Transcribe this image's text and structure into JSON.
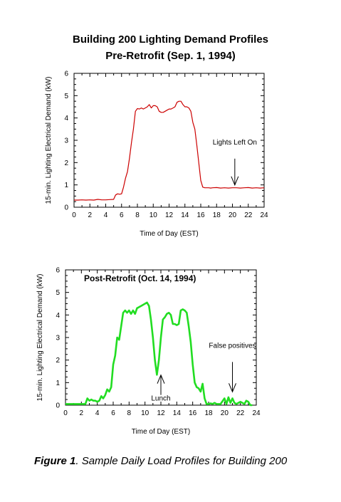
{
  "header": {
    "title": "Building 200 Lighting Demand Profiles",
    "subtitle": "Pre-Retrofit (Sep. 1, 1994)"
  },
  "caption": {
    "label": "Figure 1",
    "text": ".  Sample Daily Load Profiles for Building 200"
  },
  "chart_data": [
    {
      "type": "line",
      "title": "Pre-Retrofit (Sep. 1, 1994)",
      "xlabel": "Time of Day (EST)",
      "ylabel": "15-min. Lighting Electrical Demand (kW)",
      "xlim": [
        0,
        24
      ],
      "ylim": [
        0,
        6
      ],
      "xticks": [
        "0",
        "2",
        "4",
        "6",
        "8",
        "10",
        "12",
        "14",
        "16",
        "18",
        "20",
        "22",
        "24"
      ],
      "yticks": [
        "0",
        "1",
        "2",
        "3",
        "4",
        "5",
        "6"
      ],
      "grid": false,
      "line_color": "#cc0000",
      "annotations": [
        {
          "text": "Lights Left On",
          "x": 20.3,
          "y": 0.9
        }
      ],
      "series": [
        {
          "x": [
            0,
            0.5,
            1,
            1.5,
            2,
            2.5,
            3,
            3.5,
            4,
            4.5,
            5,
            5.25,
            5.5,
            5.75,
            6,
            6.25,
            6.5,
            6.75,
            7,
            7.25,
            7.5,
            7.75,
            8,
            8.25,
            8.5,
            8.75,
            9,
            9.25,
            9.5,
            9.75,
            10,
            10.25,
            10.5,
            10.75,
            11,
            11.25,
            11.5,
            11.75,
            12,
            12.25,
            12.5,
            12.75,
            13,
            13.25,
            13.5,
            13.75,
            14,
            14.25,
            14.5,
            14.75,
            15,
            15.25,
            15.5,
            15.75,
            16,
            16.25,
            16.5,
            16.75,
            17,
            17.25,
            17.5,
            18,
            18.5,
            19,
            19.5,
            20,
            20.5,
            21,
            21.5,
            22,
            22.5,
            23,
            23.5,
            24
          ],
          "y": [
            0.32,
            0.32,
            0.33,
            0.32,
            0.33,
            0.32,
            0.35,
            0.33,
            0.33,
            0.34,
            0.35,
            0.55,
            0.6,
            0.58,
            0.6,
            0.9,
            1.3,
            1.6,
            2.2,
            2.9,
            3.5,
            4.3,
            4.42,
            4.4,
            4.45,
            4.4,
            4.45,
            4.5,
            4.6,
            4.45,
            4.55,
            4.55,
            4.5,
            4.3,
            4.25,
            4.25,
            4.3,
            4.35,
            4.4,
            4.4,
            4.45,
            4.5,
            4.7,
            4.75,
            4.75,
            4.6,
            4.5,
            4.5,
            4.45,
            4.3,
            3.8,
            3.5,
            2.8,
            2.0,
            1.2,
            0.9,
            0.87,
            0.87,
            0.87,
            0.86,
            0.87,
            0.88,
            0.86,
            0.87,
            0.86,
            0.87,
            0.87,
            0.86,
            0.87,
            0.88,
            0.86,
            0.87,
            0.86,
            0.87
          ]
        }
      ]
    },
    {
      "type": "line",
      "title": "Post-Retrofit (Oct. 14, 1994)",
      "xlabel": "Time of Day (EST)",
      "ylabel": "15-min. Lighting Electrical Demand (kW)",
      "xlim": [
        0,
        24
      ],
      "ylim": [
        0,
        6
      ],
      "xticks": [
        "0",
        "2",
        "4",
        "6",
        "8",
        "10",
        "12",
        "14",
        "16",
        "18",
        "20",
        "22",
        "24"
      ],
      "yticks": [
        "0",
        "1",
        "2",
        "3",
        "4",
        "5",
        "6"
      ],
      "grid": false,
      "line_color": "#22dd22",
      "annotations": [
        {
          "text": "Lunch",
          "x": 12.0,
          "y": 1.4
        },
        {
          "text": "False positives",
          "x": 21.0,
          "y": 0.4
        }
      ],
      "series": [
        {
          "x": [
            0,
            0.5,
            1,
            1.5,
            2,
            2.5,
            2.75,
            3,
            3.25,
            3.5,
            3.75,
            4,
            4.25,
            4.5,
            4.75,
            5,
            5.25,
            5.5,
            5.75,
            6,
            6.25,
            6.5,
            6.75,
            7,
            7.25,
            7.5,
            7.75,
            8,
            8.25,
            8.5,
            8.75,
            9,
            9.25,
            9.5,
            9.75,
            10,
            10.25,
            10.5,
            10.75,
            11,
            11.25,
            11.5,
            11.75,
            12,
            12.25,
            12.5,
            12.75,
            13,
            13.25,
            13.5,
            13.75,
            14,
            14.25,
            14.5,
            14.75,
            15,
            15.25,
            15.5,
            15.75,
            16,
            16.25,
            16.5,
            16.75,
            17,
            17.25,
            17.5,
            17.75,
            18,
            18.25,
            18.5,
            18.75,
            19,
            19.5,
            20,
            20.25,
            20.5,
            20.75,
            21,
            21.25,
            21.5,
            21.75,
            22,
            22.25,
            22.5,
            22.75,
            23,
            23.25,
            23.5
          ],
          "y": [
            0.05,
            0.05,
            0.05,
            0.05,
            0.05,
            0.05,
            0.3,
            0.2,
            0.25,
            0.2,
            0.2,
            0.15,
            0.2,
            0.4,
            0.3,
            0.45,
            0.7,
            0.6,
            0.8,
            1.8,
            2.2,
            3.0,
            2.9,
            3.5,
            4.1,
            4.2,
            4.1,
            4.2,
            4.05,
            4.2,
            4.05,
            4.3,
            4.35,
            4.4,
            4.45,
            4.5,
            4.55,
            4.4,
            3.8,
            3.0,
            2.0,
            1.35,
            2.0,
            3.0,
            3.8,
            3.9,
            4.05,
            4.1,
            4.0,
            3.6,
            3.6,
            3.55,
            3.6,
            4.2,
            4.25,
            4.2,
            4.1,
            3.5,
            2.8,
            1.8,
            1.0,
            0.8,
            0.75,
            0.6,
            0.95,
            0.3,
            0.05,
            0.05,
            0.08,
            0.05,
            0.1,
            0.05,
            0.05,
            0.3,
            0.05,
            0.35,
            0.1,
            0.3,
            0.1,
            0.05,
            0.1,
            0.15,
            0.1,
            0.05,
            0.2,
            0.15,
            0.0,
            0.0
          ]
        }
      ]
    }
  ]
}
